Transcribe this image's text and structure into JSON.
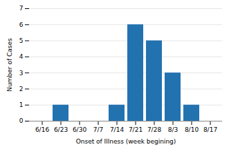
{
  "chart_data": {
    "type": "bar",
    "categories": [
      "6/16",
      "6/23",
      "6/30",
      "7/7",
      "7/14",
      "7/21",
      "7/28",
      "8/3",
      "8/10",
      "8/17"
    ],
    "values": [
      0,
      1,
      0,
      0,
      1,
      6,
      5,
      3,
      1,
      0
    ],
    "color": "#2272b0",
    "xlabel": "Onset of Illness (week begining)",
    "ylabel": "Number of Cases",
    "ylim": [
      0,
      7
    ],
    "yticks": [
      0,
      1,
      2,
      3,
      4,
      5,
      6,
      7
    ],
    "grid": true
  }
}
